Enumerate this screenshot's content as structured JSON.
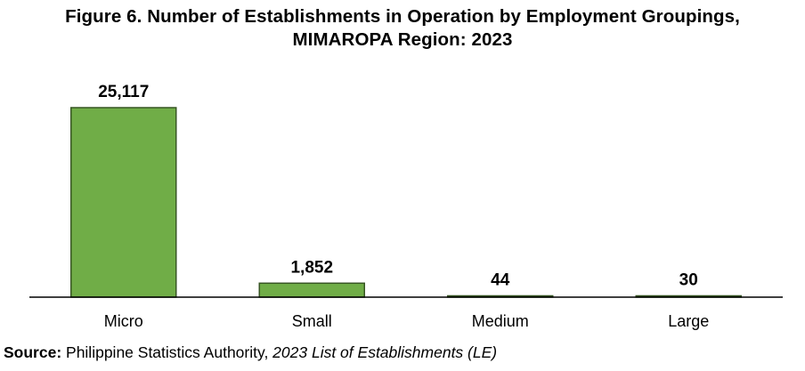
{
  "title_line1": "Figure 6. Number of Establishments in Operation by Employment Groupings,",
  "title_line2": "MIMAROPA Region: 2023",
  "source": {
    "label": "Source:",
    "text": " Philippine Statistics Authority, ",
    "publication": "2023 List of Establishments (LE)"
  },
  "colors": {
    "bar_fill": "#70AD47",
    "bar_stroke": "#375623"
  },
  "chart_data": {
    "type": "bar",
    "categories": [
      "Micro",
      "Small",
      "Medium",
      "Large"
    ],
    "values": [
      25117,
      1852,
      44,
      30
    ],
    "data_labels": [
      "25,117",
      "1,852",
      "44",
      "30"
    ],
    "title": "Figure 6. Number of Establishments in Operation by Employment Groupings, MIMAROPA Region: 2023",
    "xlabel": "",
    "ylabel": "",
    "ylim": [
      0,
      25117
    ],
    "grid": false,
    "legend": "none"
  }
}
